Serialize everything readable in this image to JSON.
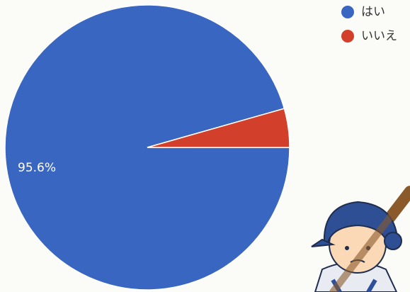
{
  "chart_data": {
    "type": "pie",
    "categories": [
      "はい",
      "いいえ"
    ],
    "values": [
      95.6,
      4.4
    ],
    "value_labels": [
      "95.6%",
      null
    ],
    "colors": [
      "#3966c1",
      "#d2402b"
    ]
  }
}
